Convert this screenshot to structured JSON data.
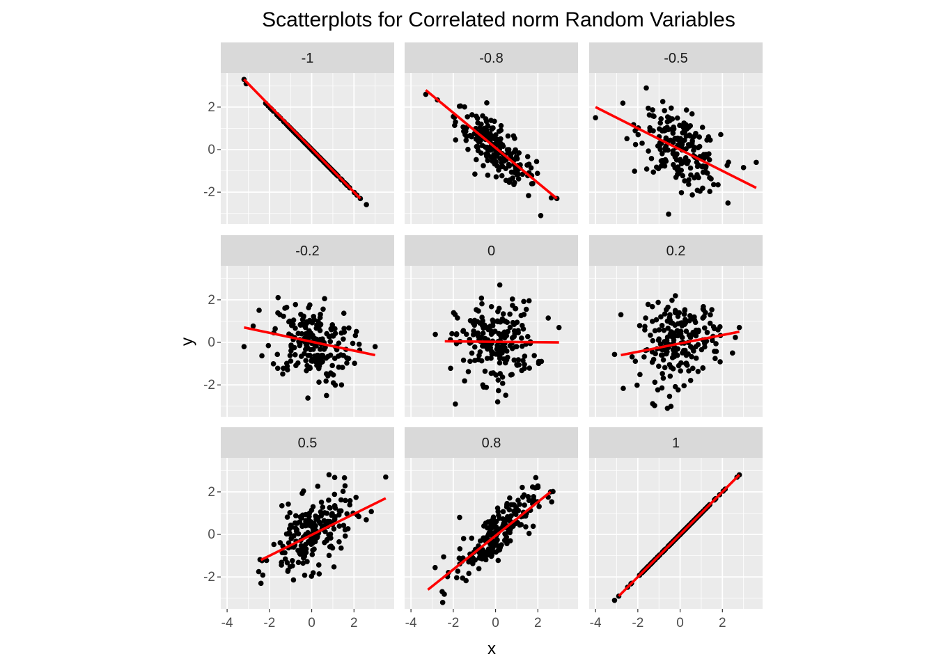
{
  "chart_data": {
    "type": "scatter",
    "title": "Scatterplots for Correlated norm Random Variables",
    "xlabel": "x",
    "ylabel": "y",
    "xlim": [
      -4.3,
      3.9
    ],
    "ylim": [
      -3.5,
      3.6
    ],
    "x_ticks": [
      -4,
      -2,
      0,
      2
    ],
    "y_ticks": [
      -2,
      0,
      2
    ],
    "x_tick_labels": [
      "-4",
      "-2",
      "0",
      "2"
    ],
    "y_tick_labels": [
      "-2",
      "0",
      "2"
    ],
    "grid": true,
    "point_color": "#000000",
    "fit_line_color": "#ff0000",
    "panel_background": "#ebebeb",
    "strip_background": "#d9d9d9",
    "facet_layout": "3x3",
    "points_per_panel": 200,
    "panels": [
      {
        "label": "-1",
        "correlation": -1.0,
        "x_range": [
          -3.2,
          2.3
        ],
        "fit_line": {
          "x0": -3.2,
          "y0": 3.3,
          "x1": 2.3,
          "y1": -2.3
        },
        "extreme_points": [
          [
            -3.2,
            3.3
          ],
          [
            2.3,
            -2.3
          ]
        ]
      },
      {
        "label": "-0.8",
        "correlation": -0.8,
        "x_range": [
          -3.3,
          2.9
        ],
        "fit_line": {
          "x0": -3.3,
          "y0": 2.8,
          "x1": 2.9,
          "y1": -2.3
        },
        "extreme_points": [
          [
            -3.3,
            2.6
          ],
          [
            2.9,
            -2.3
          ]
        ]
      },
      {
        "label": "-0.5",
        "correlation": -0.5,
        "x_range": [
          -4.0,
          3.6
        ],
        "fit_line": {
          "x0": -4.0,
          "y0": 2.0,
          "x1": 3.6,
          "y1": -1.8
        },
        "extreme_points": [
          [
            -4.0,
            1.5
          ],
          [
            3.6,
            -0.6
          ],
          [
            -1.6,
            2.9
          ]
        ]
      },
      {
        "label": "-0.2",
        "correlation": -0.2,
        "x_range": [
          -3.2,
          3.0
        ],
        "fit_line": {
          "x0": -3.2,
          "y0": 0.7,
          "x1": 3.0,
          "y1": -0.6
        },
        "extreme_points": [
          [
            -3.2,
            -0.2
          ],
          [
            3.0,
            -0.2
          ],
          [
            0.7,
            -2.5
          ]
        ]
      },
      {
        "label": "0",
        "correlation": 0.0,
        "x_range": [
          -2.4,
          3.0
        ],
        "fit_line": {
          "x0": -2.4,
          "y0": 0.05,
          "x1": 3.0,
          "y1": 0.0
        },
        "extreme_points": [
          [
            -1.9,
            -2.9
          ],
          [
            0.2,
            2.7
          ],
          [
            3.0,
            0.7
          ],
          [
            0.1,
            -2.8
          ]
        ]
      },
      {
        "label": "0.2",
        "correlation": 0.2,
        "x_range": [
          -2.8,
          2.8
        ],
        "fit_line": {
          "x0": -2.8,
          "y0": -0.6,
          "x1": 2.8,
          "y1": 0.5
        },
        "extreme_points": [
          [
            -2.8,
            1.3
          ],
          [
            2.8,
            0.7
          ],
          [
            -0.6,
            -3.1
          ]
        ]
      },
      {
        "label": "0.5",
        "correlation": 0.5,
        "x_range": [
          -2.4,
          3.5
        ],
        "fit_line": {
          "x0": -2.4,
          "y0": -1.2,
          "x1": 3.5,
          "y1": 1.7
        },
        "extreme_points": [
          [
            3.5,
            2.7
          ],
          [
            -2.4,
            -2.3
          ]
        ]
      },
      {
        "label": "0.8",
        "correlation": 0.8,
        "x_range": [
          -3.2,
          2.6
        ],
        "fit_line": {
          "x0": -3.2,
          "y0": -2.6,
          "x1": 2.6,
          "y1": 2.0
        },
        "extreme_points": [
          [
            -2.5,
            -3.2
          ],
          [
            2.6,
            2.0
          ],
          [
            -1.7,
            0.8
          ]
        ]
      },
      {
        "label": "1",
        "correlation": 1.0,
        "x_range": [
          -2.9,
          2.8
        ],
        "fit_line": {
          "x0": -2.9,
          "y0": -2.9,
          "x1": 2.8,
          "y1": 2.8
        },
        "extreme_points": [
          [
            -2.9,
            -2.9
          ],
          [
            2.8,
            2.8
          ]
        ]
      }
    ]
  }
}
